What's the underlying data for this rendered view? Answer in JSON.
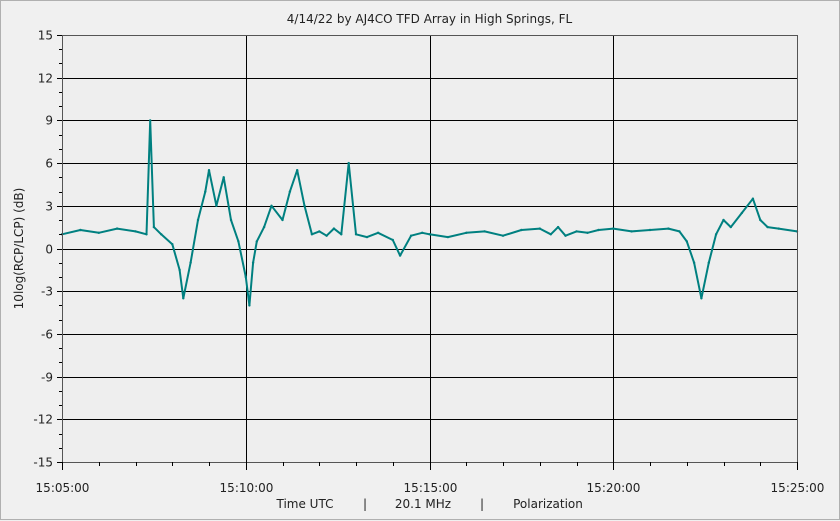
{
  "chart_data": {
    "type": "line",
    "title": "4/14/22  by  AJ4CO TFD Array  in  High Springs, FL",
    "ylabel": "10log(RCP/LCP) (dB)",
    "xlabel_parts": [
      "Time UTC",
      "|",
      "20.1 MHz",
      "|",
      "Polarization"
    ],
    "xlim": [
      0,
      20
    ],
    "ylim": [
      -15,
      15
    ],
    "x_tick_values": [
      0,
      5,
      10,
      15,
      20
    ],
    "x_tick_labels": [
      "15:05:00",
      "15:10:00",
      "15:15:00",
      "15:20:00",
      "15:25:00"
    ],
    "y_tick_values": [
      15,
      12,
      9,
      6,
      3,
      0,
      -3,
      -6,
      -9,
      -12,
      -15
    ],
    "y_tick_labels": [
      "15",
      "12",
      "9",
      "6",
      "3",
      "0",
      "-3",
      "-6",
      "-9",
      "-12",
      "-15"
    ],
    "grid": true,
    "series": [
      {
        "color": "#008080",
        "x": [
          0,
          0.5,
          1.0,
          1.5,
          2.0,
          2.3,
          2.4,
          2.5,
          2.7,
          3.0,
          3.2,
          3.3,
          3.5,
          3.7,
          3.9,
          4.0,
          4.2,
          4.4,
          4.6,
          4.8,
          5.0,
          5.1,
          5.2,
          5.3,
          5.5,
          5.7,
          6.0,
          6.2,
          6.4,
          6.6,
          6.8,
          7.0,
          7.2,
          7.4,
          7.6,
          7.8,
          8.0,
          8.3,
          8.6,
          9.0,
          9.2,
          9.5,
          9.8,
          10.0,
          10.5,
          11.0,
          11.5,
          12.0,
          12.5,
          13.0,
          13.3,
          13.5,
          13.7,
          14.0,
          14.3,
          14.6,
          15.0,
          15.5,
          16.0,
          16.5,
          16.8,
          17.0,
          17.2,
          17.4,
          17.6,
          17.8,
          18.0,
          18.2,
          18.5,
          18.8,
          19.0,
          19.2,
          19.5,
          20.0
        ],
        "y": [
          1.0,
          1.3,
          1.1,
          1.4,
          1.2,
          1.0,
          9.0,
          1.5,
          1.0,
          0.3,
          -1.5,
          -3.5,
          -1.0,
          2.0,
          4.0,
          5.5,
          3.0,
          5.0,
          2.0,
          0.5,
          -2.0,
          -4.0,
          -1.0,
          0.5,
          1.5,
          3.0,
          2.0,
          4.0,
          5.5,
          3.0,
          1.0,
          1.2,
          0.9,
          1.4,
          1.0,
          6.0,
          1.0,
          0.8,
          1.1,
          0.6,
          -0.5,
          0.9,
          1.1,
          1.0,
          0.8,
          1.1,
          1.2,
          0.9,
          1.3,
          1.4,
          1.0,
          1.5,
          0.9,
          1.2,
          1.1,
          1.3,
          1.4,
          1.2,
          1.3,
          1.4,
          1.2,
          0.5,
          -1.0,
          -3.5,
          -1.0,
          1.0,
          2.0,
          1.5,
          2.5,
          3.5,
          2.0,
          1.5,
          1.4,
          1.2
        ]
      }
    ]
  }
}
